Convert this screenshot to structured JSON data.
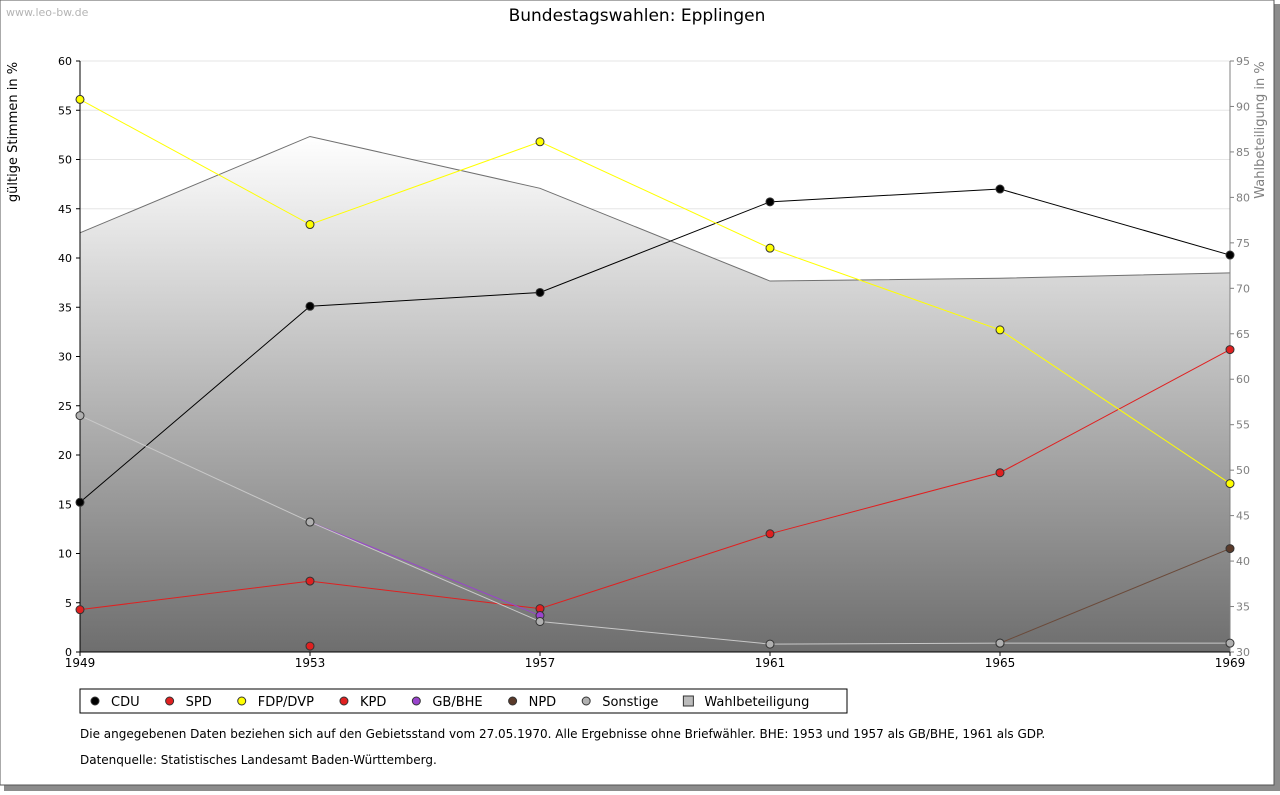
{
  "watermark": "www.leo-bw.de",
  "chart_data": {
    "type": "line",
    "title": "Bundestagswahlen: Epplingen",
    "ylabel": "gültige Stimmen in %",
    "y2label": "Wahlbeteiligung in %",
    "x": [
      "1949",
      "1953",
      "1957",
      "1961",
      "1965",
      "1969"
    ],
    "ylim": [
      0,
      60
    ],
    "y2lim": [
      30,
      95
    ],
    "yticks": [
      0,
      5,
      10,
      15,
      20,
      25,
      30,
      35,
      40,
      45,
      50,
      55,
      60
    ],
    "y2ticks": [
      30,
      35,
      40,
      45,
      50,
      55,
      60,
      65,
      70,
      75,
      80,
      85,
      90,
      95
    ],
    "grid": true,
    "legend_position": "bottom",
    "turnout": {
      "name": "Wahlbeteiligung",
      "values": [
        76.1,
        86.7,
        81.0,
        70.8,
        71.1,
        71.7
      ]
    },
    "series": [
      {
        "name": "CDU",
        "color": "#000000",
        "marker": "#000000",
        "values": [
          15.2,
          35.1,
          36.5,
          45.7,
          47.0,
          40.3
        ]
      },
      {
        "name": "SPD",
        "color": "#e02020",
        "marker": "#e02020",
        "values": [
          4.3,
          7.2,
          4.4,
          12.0,
          18.2,
          30.7
        ]
      },
      {
        "name": "FDP/DVP",
        "color": "#ffff00",
        "marker": "#ffff00",
        "values": [
          56.1,
          43.4,
          51.8,
          41.0,
          32.7,
          17.1
        ]
      },
      {
        "name": "KPD",
        "color": "#cc0000",
        "marker": "#e02020",
        "values": [
          null,
          0.6,
          null,
          null,
          null,
          null
        ]
      },
      {
        "name": "GB/BHE",
        "color": "#9944cc",
        "marker": "#9944cc",
        "values": [
          null,
          13.2,
          3.7,
          null,
          null,
          null
        ]
      },
      {
        "name": "NPD",
        "color": "#6b4a3a",
        "marker": "#5a3a2a",
        "values": [
          null,
          null,
          null,
          null,
          0.9,
          10.5
        ]
      },
      {
        "name": "Sonstige",
        "color": "#c8c8c8",
        "marker": "#b0b0b0",
        "values": [
          24.0,
          13.2,
          3.1,
          0.8,
          0.9,
          0.9
        ]
      }
    ],
    "footnotes": [
      "Die angegebenen Daten beziehen sich auf den Gebietsstand vom 27.05.1970. Alle Ergebnisse ohne Briefwähler. BHE: 1953 und 1957 als GB/BHE, 1961 als GDP.",
      "Datenquelle: Statistisches Landesamt Baden-Württemberg."
    ]
  }
}
